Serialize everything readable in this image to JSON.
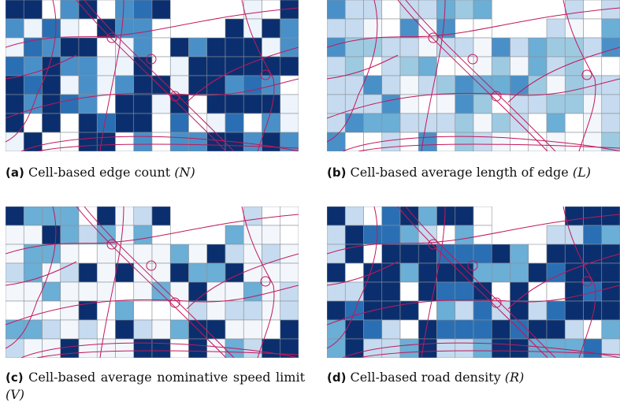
{
  "panels": [
    {
      "label": "(a)",
      "text": "Cell-based edge count",
      "symbol": "(N)"
    },
    {
      "label": "(b)",
      "text": "Cell-based average length of edge",
      "symbol": "(L)"
    },
    {
      "label": "(c)",
      "text": "Cell-based average nominative speed limit",
      "symbol": "(V)"
    },
    {
      "label": "(d)",
      "text": "Cell-based road density",
      "symbol": "(R)"
    }
  ]
}
